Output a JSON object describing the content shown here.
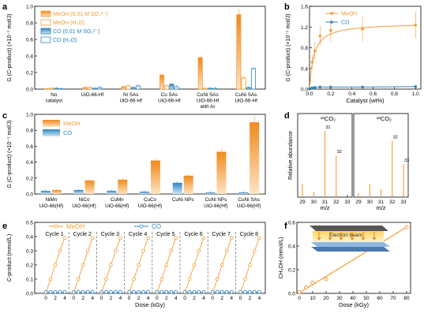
{
  "chart_data": [
    {
      "panel": "a",
      "type": "bar",
      "ylabel": "G (C-product) (×10⁻⁷ mol/J)",
      "ylim": [
        0,
        1.0
      ],
      "yticks": [
        "0.0",
        "0.2",
        "0.4",
        "0.6",
        "0.8",
        "1.0"
      ],
      "categories": [
        "No catalyst",
        "UiO-66-Hf",
        "Ni SAs UiO-66-Hf",
        "Cu SAs UiO-66-Hf",
        "CuNi SAs UiO-66-Hf with Ar",
        "CuNi SAs UiO-66-Hf"
      ],
      "series": [
        {
          "name": "MeOH (0.01 M SO₃²⁻)",
          "color": "#f39c34",
          "style": "gradient",
          "values": [
            0.0,
            0.02,
            0.03,
            0.17,
            0.38,
            0.9
          ]
        },
        {
          "name": "MeOH (H₂O)",
          "color": "#f39c34",
          "style": "hollow",
          "values": [
            0.01,
            0.02,
            0.04,
            0.04,
            0.01,
            0.14
          ]
        },
        {
          "name": "CO (0.01 M SO₃²⁻)",
          "color": "#2e86c1",
          "style": "gradient",
          "values": [
            0.01,
            0.01,
            0.02,
            0.06,
            0.01,
            0.02
          ]
        },
        {
          "name": "CO (H₂O)",
          "color": "#2e86c1",
          "style": "hollow",
          "values": [
            0.0,
            0.02,
            0.04,
            0.03,
            0.01,
            0.25
          ]
        }
      ]
    },
    {
      "panel": "b",
      "type": "line",
      "xlabel": "Catalyst (wt%)",
      "ylabel": "G (C-product) (×10⁻⁷ mol/J)",
      "xlim": [
        0,
        1.05
      ],
      "ylim": [
        0,
        2.0
      ],
      "xticks": [
        "0.0",
        "0.2",
        "0.4",
        "0.6",
        "0.8",
        "1.0"
      ],
      "yticks": [
        "0.0",
        "0.4",
        "0.8",
        "1.2",
        "1.6"
      ],
      "series": [
        {
          "name": "MeOH",
          "color": "#f39c34",
          "x": [
            0,
            0.025,
            0.05,
            0.1,
            0.2,
            0.5,
            1.0
          ],
          "y": [
            0.0,
            0.65,
            0.92,
            1.28,
            1.42,
            1.45,
            1.55
          ]
        },
        {
          "name": "CO",
          "color": "#2e86c1",
          "x": [
            0,
            0.025,
            0.05,
            0.1,
            0.2,
            0.5,
            1.0
          ],
          "y": [
            0.01,
            0.03,
            0.04,
            0.05,
            0.05,
            0.05,
            0.06
          ]
        }
      ]
    },
    {
      "panel": "c",
      "type": "bar",
      "ylabel": "G (C-product) (×10⁻⁷ mol/J)",
      "ylim": [
        0,
        1.0
      ],
      "yticks": [
        "0.0",
        "0.2",
        "0.4",
        "0.6",
        "0.8",
        "1.0"
      ],
      "categories": [
        "NiMn UiO-66(Hf)",
        "NiCo UiO-66(Hf)",
        "CuMn UiO-66(Hf)",
        "CuCo UiO-66(Hf)",
        "CuNi NPs",
        "CuNi NPs UiO-66(Hf)",
        "CuNi SAs UiO-66(Hf)"
      ],
      "series": [
        {
          "name": "MeOH",
          "color": "#f39c34",
          "values": [
            0.05,
            0.17,
            0.18,
            0.42,
            0.23,
            0.53,
            0.9
          ]
        },
        {
          "name": "CO",
          "color": "#2e86c1",
          "values": [
            0.04,
            0.05,
            0.04,
            0.03,
            0.14,
            0.02,
            0.02
          ]
        }
      ]
    },
    {
      "panel": "d",
      "type": "bar",
      "xlabel": "m/z",
      "ylabel": "Relative abundance",
      "subpanels": [
        {
          "label": "¹²CO₂",
          "ticks": [
            "29",
            "30",
            "31",
            "32",
            "33"
          ],
          "x": [
            29,
            30,
            31,
            32
          ],
          "values": [
            0.2,
            0.08,
            1.0,
            0.63
          ],
          "annotations": [
            {
              "x": 31,
              "text": "31"
            },
            {
              "x": 32,
              "text": "32"
            }
          ]
        },
        {
          "label": "¹³CO₂",
          "ticks": [
            "29",
            "30",
            "31",
            "32",
            "33"
          ],
          "x": [
            29,
            30,
            31,
            32,
            33
          ],
          "values": [
            0.06,
            0.2,
            0.12,
            0.85,
            0.5
          ],
          "annotations": [
            {
              "x": 32,
              "text": "32"
            },
            {
              "x": 33,
              "text": "33"
            }
          ]
        }
      ]
    },
    {
      "panel": "e",
      "type": "scatter",
      "xlabel": "Dose (kGy)",
      "ylabel": "C-product (mmol/L)",
      "ylim": [
        0,
        0.5
      ],
      "yticks": [
        "0.0",
        "0.1",
        "0.2",
        "0.3",
        "0.4",
        "0.5"
      ],
      "cycle_xticks": [
        "0",
        "2",
        "4"
      ],
      "cycles": [
        "Cycle 1",
        "Cycle 2",
        "Cycle 3",
        "Cycle 4",
        "Cycle 5",
        "Cycle 6",
        "Cycle 7",
        "Cycle 8"
      ],
      "series": [
        {
          "name": "MeOH",
          "color": "#f39c34",
          "x": [
            0,
            1,
            2,
            3,
            4
          ],
          "y": [
            0.0,
            0.1,
            0.2,
            0.3,
            0.39
          ]
        },
        {
          "name": "CO",
          "color": "#2e86c1",
          "x": [
            0,
            1,
            2,
            3,
            4
          ],
          "y": [
            0.01,
            0.01,
            0.01,
            0.01,
            0.01
          ]
        }
      ]
    },
    {
      "panel": "f",
      "type": "scatter",
      "xlabel": "Dose (kGy)",
      "ylabel": "CH₃OH (mmol/L)",
      "xlim": [
        0,
        80
      ],
      "ylim": [
        0,
        0.6
      ],
      "xticks": [
        "0",
        "10",
        "20",
        "30",
        "40",
        "50",
        "60",
        "70",
        "80"
      ],
      "yticks": [
        "0.0",
        "0.2",
        "0.4",
        "0.6"
      ],
      "series": [
        {
          "name": "CH₃OH",
          "color": "#f39c34",
          "x": [
            0,
            5,
            10,
            20,
            80
          ],
          "y": [
            0.01,
            0.05,
            0.09,
            0.12,
            0.56
          ]
        }
      ],
      "fit": {
        "x": [
          0,
          80
        ],
        "y": [
          0.005,
          0.56
        ]
      },
      "inset_label": "Electron beam"
    }
  ],
  "panel_labels": [
    "a",
    "b",
    "c",
    "d",
    "e",
    "f"
  ]
}
